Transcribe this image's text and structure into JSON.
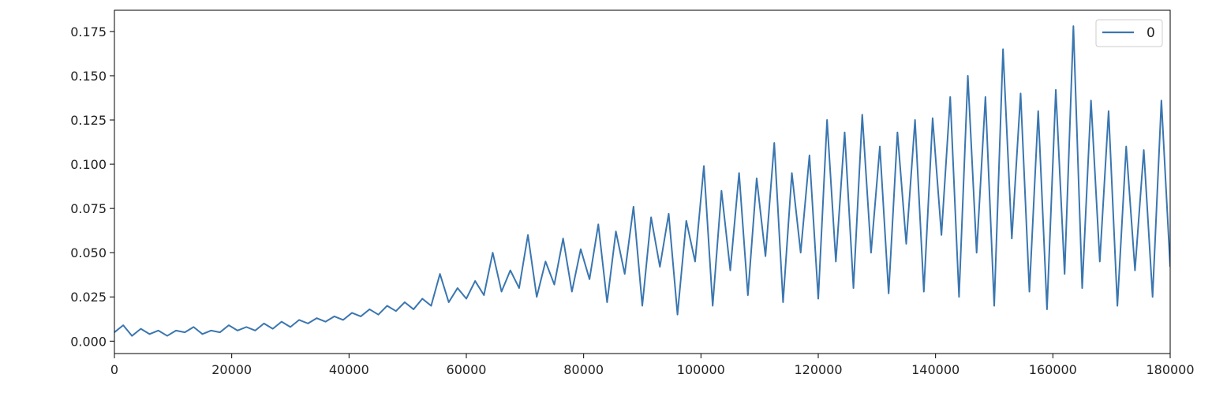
{
  "chart_data": {
    "type": "line",
    "title": "",
    "xlabel": "",
    "ylabel": "",
    "xlim": [
      0,
      180000
    ],
    "ylim": [
      -0.007,
      0.187
    ],
    "grid": false,
    "legend": {
      "placement": "top-right",
      "entries": [
        "0"
      ]
    },
    "x_ticks": [
      0,
      20000,
      40000,
      60000,
      80000,
      100000,
      120000,
      140000,
      160000,
      180000
    ],
    "x_tick_labels": [
      "0",
      "20000",
      "40000",
      "60000",
      "80000",
      "100000",
      "120000",
      "140000",
      "160000",
      "180000"
    ],
    "y_ticks": [
      0.0,
      0.025,
      0.05,
      0.075,
      0.1,
      0.125,
      0.15,
      0.175
    ],
    "y_tick_labels": [
      "0.000",
      "0.025",
      "0.050",
      "0.075",
      "0.100",
      "0.125",
      "0.150",
      "0.175"
    ],
    "series": [
      {
        "name": "0",
        "color": "#3a76b0",
        "x": [
          0,
          1500,
          3000,
          4500,
          6000,
          7500,
          9000,
          10500,
          12000,
          13500,
          15000,
          16500,
          18000,
          19500,
          21000,
          22500,
          24000,
          25500,
          27000,
          28500,
          30000,
          31500,
          33000,
          34500,
          36000,
          37500,
          39000,
          40500,
          42000,
          43500,
          45000,
          46500,
          48000,
          49500,
          51000,
          52500,
          54000,
          55500,
          57000,
          58500,
          60000,
          61500,
          63000,
          64500,
          66000,
          67500,
          69000,
          70500,
          72000,
          73500,
          75000,
          76500,
          78000,
          79500,
          81000,
          82500,
          84000,
          85500,
          87000,
          88500,
          90000,
          91500,
          93000,
          94500,
          96000,
          97500,
          99000,
          100500,
          102000,
          103500,
          105000,
          106500,
          108000,
          109500,
          111000,
          112500,
          114000,
          115500,
          117000,
          118500,
          120000,
          121500,
          123000,
          124500,
          126000,
          127500,
          129000,
          130500,
          132000,
          133500,
          135000,
          136500,
          138000,
          139500,
          141000,
          142500,
          144000,
          145500,
          147000,
          148500,
          150000,
          151500,
          153000,
          154500,
          156000,
          157500,
          159000,
          160500,
          162000,
          163500,
          165000,
          166500,
          168000,
          169500,
          171000,
          172500,
          174000,
          175500,
          177000,
          178500,
          180000
        ],
        "values": [
          0.005,
          0.009,
          0.003,
          0.007,
          0.004,
          0.006,
          0.003,
          0.006,
          0.005,
          0.008,
          0.004,
          0.006,
          0.005,
          0.009,
          0.006,
          0.008,
          0.006,
          0.01,
          0.007,
          0.011,
          0.008,
          0.012,
          0.01,
          0.013,
          0.011,
          0.014,
          0.012,
          0.016,
          0.014,
          0.018,
          0.015,
          0.02,
          0.017,
          0.022,
          0.018,
          0.024,
          0.02,
          0.038,
          0.022,
          0.03,
          0.024,
          0.034,
          0.026,
          0.05,
          0.028,
          0.04,
          0.03,
          0.06,
          0.025,
          0.045,
          0.032,
          0.058,
          0.028,
          0.052,
          0.035,
          0.066,
          0.022,
          0.062,
          0.038,
          0.076,
          0.02,
          0.07,
          0.042,
          0.072,
          0.015,
          0.068,
          0.045,
          0.099,
          0.02,
          0.085,
          0.04,
          0.095,
          0.026,
          0.092,
          0.048,
          0.112,
          0.022,
          0.095,
          0.05,
          0.105,
          0.024,
          0.125,
          0.045,
          0.118,
          0.03,
          0.128,
          0.05,
          0.11,
          0.027,
          0.118,
          0.055,
          0.125,
          0.028,
          0.126,
          0.06,
          0.138,
          0.025,
          0.15,
          0.05,
          0.138,
          0.02,
          0.165,
          0.058,
          0.14,
          0.028,
          0.13,
          0.018,
          0.142,
          0.038,
          0.178,
          0.03,
          0.136,
          0.045,
          0.13,
          0.02,
          0.11,
          0.04,
          0.108,
          0.025,
          0.136,
          0.042
        ]
      }
    ]
  }
}
